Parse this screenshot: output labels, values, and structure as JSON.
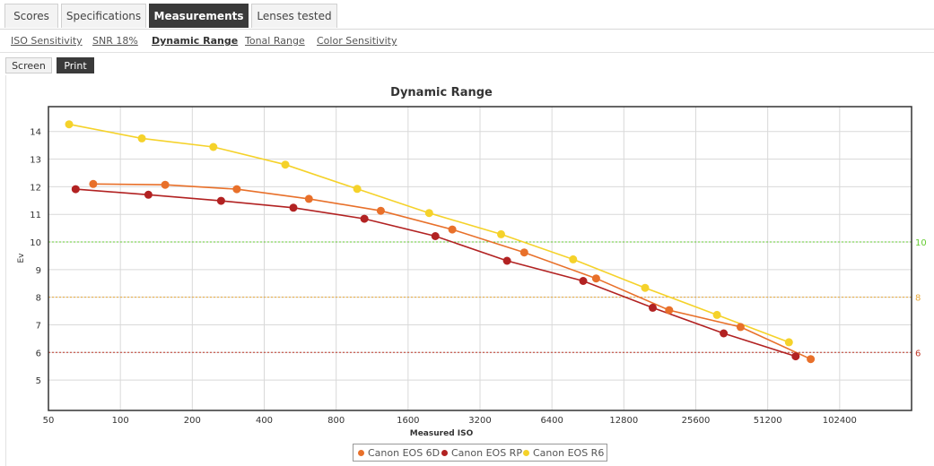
{
  "tabs": [
    {
      "label": "Scores"
    },
    {
      "label": "Specifications"
    },
    {
      "label": "Measurements"
    },
    {
      "label": "Lenses tested"
    }
  ],
  "subtabs": [
    {
      "label": "ISO Sensitivity"
    },
    {
      "label": "SNR 18%"
    },
    {
      "label": "Dynamic Range"
    },
    {
      "label": "Tonal Range"
    },
    {
      "label": "Color Sensitivity"
    }
  ],
  "view": {
    "screen_label": "Screen",
    "print_label": "Print"
  },
  "chart_data": {
    "type": "line",
    "title": "Dynamic Range",
    "xlabel": "Measured ISO",
    "ylabel": "Ev",
    "x_scale": "log2",
    "x_ticks": [
      50,
      100,
      200,
      400,
      800,
      1600,
      3200,
      6400,
      12800,
      25600,
      51200,
      102400
    ],
    "xlim": [
      50,
      204800
    ],
    "y_ticks": [
      5,
      6,
      7,
      8,
      9,
      10,
      11,
      12,
      13,
      14
    ],
    "ylim": [
      3.9,
      14.9
    ],
    "grid": true,
    "legend": "bottom-center",
    "reference_lines": [
      {
        "value": 10,
        "label": "10",
        "color": "#66cc33"
      },
      {
        "value": 8,
        "label": "8",
        "color": "#e8a93a"
      },
      {
        "value": 6,
        "label": "6",
        "color": "#c0392b"
      }
    ],
    "series": [
      {
        "name": "Canon EOS 6D",
        "color": "#e8702a",
        "x": [
          77,
          154,
          307,
          615,
          1230,
          2450,
          4900,
          9800,
          19800,
          39400,
          77500
        ],
        "y": [
          12.1,
          12.07,
          11.91,
          11.56,
          11.13,
          10.45,
          9.62,
          8.68,
          7.53,
          6.92,
          5.76
        ]
      },
      {
        "name": "Canon EOS RP",
        "color": "#b22222",
        "x": [
          65,
          131,
          264,
          530,
          1050,
          2080,
          4150,
          8650,
          16900,
          33500,
          67000
        ],
        "y": [
          11.91,
          11.71,
          11.49,
          11.24,
          10.84,
          10.21,
          9.32,
          8.59,
          7.62,
          6.69,
          5.86
        ]
      },
      {
        "name": "Canon EOS R6",
        "color": "#f5d22a",
        "x": [
          61,
          123,
          245,
          490,
          980,
          1960,
          3920,
          7850,
          15700,
          31400,
          62800
        ],
        "y": [
          14.26,
          13.75,
          13.44,
          12.8,
          11.92,
          11.05,
          10.28,
          9.37,
          8.34,
          7.36,
          6.37
        ]
      }
    ]
  }
}
